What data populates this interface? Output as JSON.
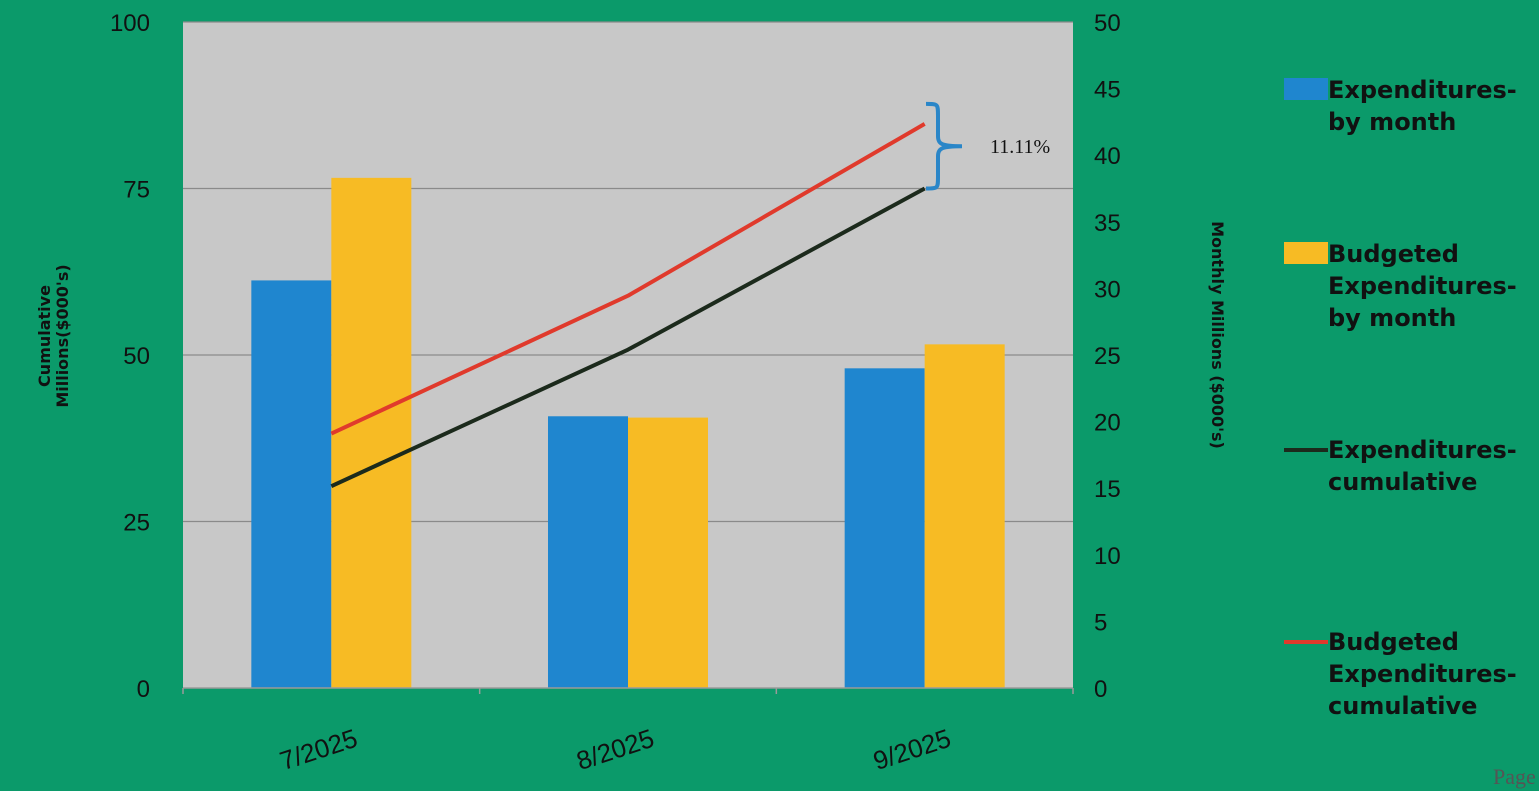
{
  "chart_data": {
    "type": "bar",
    "categories": [
      "7/2025",
      "8/2025",
      "9/2025"
    ],
    "left_axis": {
      "label": "Cumulative\nMillions($000's)",
      "ylim": [
        0,
        100
      ],
      "ticks": [
        0,
        25,
        50,
        75,
        100
      ]
    },
    "right_axis": {
      "label": "Monthly Millions ($000's)",
      "ylim": [
        0,
        50
      ],
      "ticks": [
        0,
        5,
        10,
        15,
        20,
        25,
        30,
        35,
        40,
        45,
        50
      ]
    },
    "series": [
      {
        "name": "Expenditures-\nby month",
        "kind": "bar",
        "axis": "right",
        "color": "#1f86cf",
        "values": [
          30.6,
          20.4,
          24.0
        ]
      },
      {
        "name": "Budgeted\nExpenditures-\nby month",
        "kind": "bar",
        "axis": "right",
        "color": "#f7bb24",
        "values": [
          38.3,
          20.3,
          25.8
        ]
      },
      {
        "name": "Expenditures-\ncumulative",
        "kind": "line",
        "axis": "left",
        "color": "#1c2a1c",
        "values": [
          30.3,
          50.8,
          75.0
        ]
      },
      {
        "name": "Budgeted\nExpenditures-\ncumulative",
        "kind": "line",
        "axis": "left",
        "color": "#e03a2c",
        "values": [
          38.2,
          58.9,
          84.7
        ]
      }
    ],
    "grid": true,
    "legend_position": "right",
    "annotation": "11.11%"
  },
  "page_label": "Page",
  "colors": {
    "background": "#0b9a6a",
    "plot_area": "#c8c8c8",
    "bracket": "#2a86c8"
  }
}
